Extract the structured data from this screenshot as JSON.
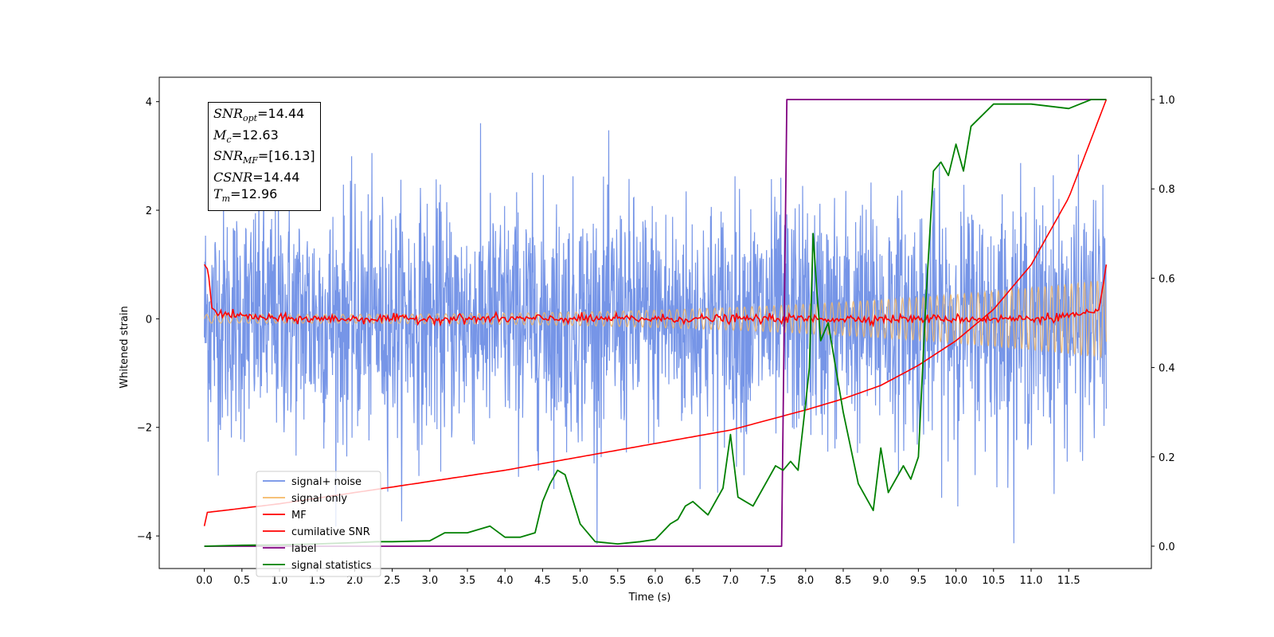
{
  "chart_data": {
    "type": "line",
    "xlabel": "Time (s)",
    "ylabel": "Whitened strain",
    "xlim": [
      -0.6,
      12.6
    ],
    "ylim": [
      -4.6,
      4.45
    ],
    "y2lim": [
      -0.05,
      1.05
    ],
    "x_ticks": [
      "0.0",
      "0.5",
      "1.0",
      "1.5",
      "2.0",
      "2.5",
      "3.0",
      "3.5",
      "4.0",
      "4.5",
      "5.0",
      "5.5",
      "6.0",
      "6.5",
      "7.0",
      "7.5",
      "8.0",
      "8.5",
      "9.0",
      "9.5",
      "10.0",
      "10.5",
      "11.0",
      "11.5"
    ],
    "y_ticks": [
      "4",
      "2",
      "0",
      "−2",
      "−4"
    ],
    "y2_ticks": [
      "1.0",
      "0.8",
      "0.6",
      "0.4",
      "0.2",
      "0.0"
    ],
    "legend_position": "lower-left",
    "grid": false,
    "annotation": {
      "snr_opt": {
        "main": "SNR",
        "sub": "opt",
        "value": "=14.44"
      },
      "mc": {
        "main": "M",
        "sub": "c",
        "value": "=12.63"
      },
      "snr_mf": {
        "main": "SNR",
        "sub": "MF",
        "value": "=[16.13]"
      },
      "csnr": {
        "main": "CSNR",
        "sub": "",
        "value": "=14.44"
      },
      "tm": {
        "main": "T",
        "sub": "m",
        "value": "=12.96"
      }
    },
    "series": [
      {
        "name": "signal+ noise",
        "color": "#6f8fe6",
        "axis": "left",
        "duration": 12.0,
        "std": 1.1
      },
      {
        "name": "signal only",
        "color": "#f5b865",
        "axis": "left",
        "duration": 12.0,
        "amplitude_start": 0.08,
        "amplitude_end": 0.72
      },
      {
        "name": "MF",
        "color": "#ff0000",
        "axis": "left",
        "x": [
          0.0,
          0.05,
          0.1,
          0.2,
          0.5,
          1,
          2,
          3,
          4,
          5,
          6,
          7,
          8,
          9,
          10,
          11,
          11.9,
          12.0
        ],
        "y": [
          1.0,
          0.9,
          0.2,
          0.1,
          0.05,
          0.0,
          0.0,
          0.0,
          0.0,
          0.0,
          0.0,
          0.0,
          0.0,
          0.0,
          0.0,
          0.0,
          0.1,
          1.0
        ]
      },
      {
        "name": "cumilative SNR",
        "color": "#ff0000",
        "axis": "right",
        "x": [
          0.0,
          0.01,
          1,
          2,
          3,
          4,
          5,
          6,
          7,
          8,
          8.5,
          9,
          9.5,
          10,
          10.5,
          11,
          11.5,
          12.0
        ],
        "y": [
          0.045,
          0.075,
          0.095,
          0.12,
          0.145,
          0.17,
          0.2,
          0.23,
          0.26,
          0.305,
          0.33,
          0.36,
          0.405,
          0.46,
          0.53,
          0.63,
          0.78,
          1.0
        ]
      },
      {
        "name": "label",
        "color": "#800080",
        "axis": "right",
        "x": [
          0.0,
          7.68,
          7.75,
          12.0
        ],
        "y": [
          0.0,
          0.0,
          1.0,
          1.0
        ]
      },
      {
        "name": "signal statistics",
        "color": "#008000",
        "axis": "right",
        "x": [
          0.0,
          0.5,
          1.0,
          1.5,
          2.0,
          2.3,
          2.5,
          3.0,
          3.2,
          3.5,
          3.8,
          4.0,
          4.2,
          4.4,
          4.5,
          4.6,
          4.7,
          4.8,
          5.0,
          5.2,
          5.5,
          5.8,
          6.0,
          6.2,
          6.3,
          6.4,
          6.5,
          6.7,
          6.9,
          7.0,
          7.1,
          7.3,
          7.5,
          7.6,
          7.7,
          7.8,
          7.9,
          8.0,
          8.05,
          8.1,
          8.15,
          8.2,
          8.3,
          8.4,
          8.5,
          8.7,
          8.9,
          9.0,
          9.1,
          9.3,
          9.4,
          9.5,
          9.6,
          9.7,
          9.8,
          9.9,
          10.0,
          10.1,
          10.2,
          10.5,
          11.0,
          11.5,
          11.8,
          12.0
        ],
        "y": [
          0.0,
          0.002,
          0.003,
          0.005,
          0.008,
          0.01,
          0.01,
          0.012,
          0.03,
          0.03,
          0.045,
          0.02,
          0.02,
          0.03,
          0.1,
          0.14,
          0.17,
          0.16,
          0.05,
          0.01,
          0.005,
          0.01,
          0.015,
          0.05,
          0.06,
          0.09,
          0.1,
          0.07,
          0.13,
          0.25,
          0.11,
          0.09,
          0.15,
          0.18,
          0.17,
          0.19,
          0.17,
          0.32,
          0.4,
          0.7,
          0.57,
          0.46,
          0.5,
          0.4,
          0.3,
          0.14,
          0.08,
          0.22,
          0.12,
          0.18,
          0.15,
          0.2,
          0.55,
          0.84,
          0.86,
          0.83,
          0.9,
          0.84,
          0.94,
          0.99,
          0.99,
          0.98,
          1.0,
          1.0
        ]
      }
    ]
  }
}
